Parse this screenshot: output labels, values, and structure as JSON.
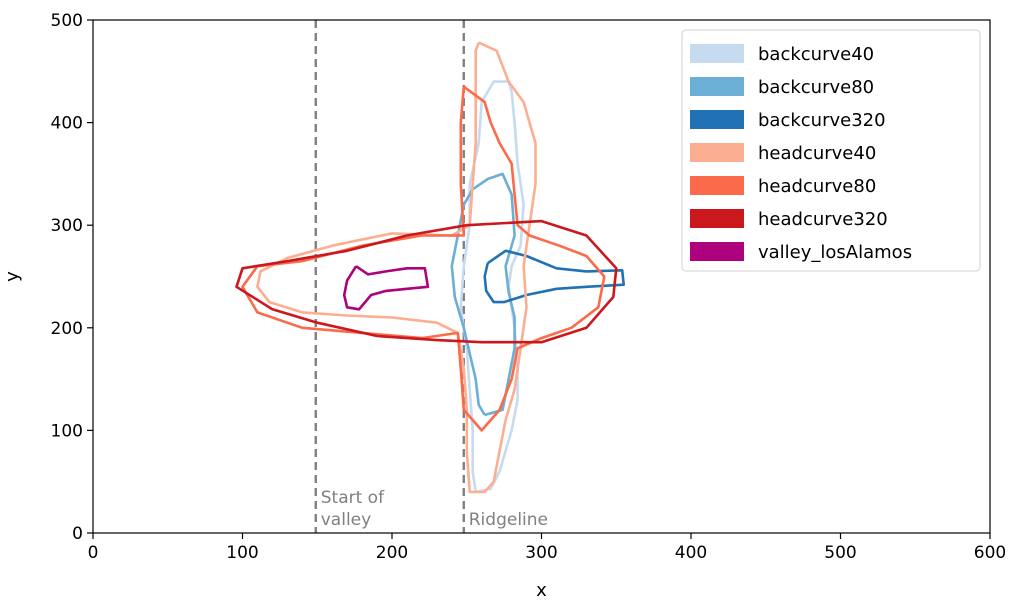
{
  "chart_data": {
    "type": "line",
    "xlabel": "x",
    "ylabel": "y",
    "xlim": [
      0,
      600
    ],
    "ylim": [
      0,
      500
    ],
    "xticks": [
      0,
      100,
      200,
      300,
      400,
      500,
      600
    ],
    "yticks": [
      0,
      100,
      200,
      300,
      400,
      500
    ],
    "grid": false,
    "legend_position": "top-right",
    "vlines": [
      {
        "x": 149,
        "label": "Start of\nvalley",
        "color": "#808080"
      },
      {
        "x": 248,
        "label": "Ridgeline",
        "color": "#808080"
      }
    ],
    "series": [
      {
        "name": "backcurve40",
        "color": "#c6dbef",
        "points": [
          [
            256,
            40
          ],
          [
            266,
            43
          ],
          [
            272,
            60
          ],
          [
            276,
            80
          ],
          [
            280,
            100
          ],
          [
            284,
            130
          ],
          [
            284,
            160
          ],
          [
            282,
            200
          ],
          [
            278,
            240
          ],
          [
            280,
            260
          ],
          [
            286,
            280
          ],
          [
            288,
            320
          ],
          [
            284,
            360
          ],
          [
            282,
            400
          ],
          [
            280,
            430
          ],
          [
            278,
            440
          ],
          [
            268,
            440
          ],
          [
            260,
            420
          ],
          [
            258,
            380
          ],
          [
            252,
            340
          ],
          [
            252,
            300
          ],
          [
            248,
            260
          ],
          [
            246,
            220
          ],
          [
            250,
            180
          ],
          [
            252,
            140
          ],
          [
            254,
            100
          ],
          [
            254,
            60
          ],
          [
            256,
            40
          ]
        ]
      },
      {
        "name": "backcurve80",
        "color": "#6baed6",
        "points": [
          [
            262,
            115
          ],
          [
            274,
            120
          ],
          [
            278,
            150
          ],
          [
            282,
            180
          ],
          [
            282,
            210
          ],
          [
            278,
            235
          ],
          [
            276,
            260
          ],
          [
            282,
            290
          ],
          [
            280,
            330
          ],
          [
            274,
            350
          ],
          [
            264,
            345
          ],
          [
            254,
            335
          ],
          [
            248,
            320
          ],
          [
            244,
            290
          ],
          [
            240,
            260
          ],
          [
            242,
            230
          ],
          [
            248,
            200
          ],
          [
            252,
            175
          ],
          [
            256,
            150
          ],
          [
            258,
            125
          ],
          [
            262,
            115
          ]
        ]
      },
      {
        "name": "backcurve320",
        "color": "#2171b5",
        "points": [
          [
            264,
            263
          ],
          [
            276,
            275
          ],
          [
            290,
            270
          ],
          [
            310,
            258
          ],
          [
            330,
            255
          ],
          [
            354,
            256
          ],
          [
            355,
            242
          ],
          [
            330,
            240
          ],
          [
            310,
            238
          ],
          [
            290,
            232
          ],
          [
            275,
            225
          ],
          [
            268,
            225
          ],
          [
            263,
            236
          ],
          [
            262,
            250
          ],
          [
            264,
            263
          ]
        ]
      },
      {
        "name": "headcurve40",
        "color": "#fcae91",
        "points": [
          [
            258,
            478
          ],
          [
            270,
            470
          ],
          [
            278,
            440
          ],
          [
            288,
            420
          ],
          [
            296,
            380
          ],
          [
            296,
            340
          ],
          [
            292,
            300
          ],
          [
            288,
            260
          ],
          [
            290,
            220
          ],
          [
            286,
            180
          ],
          [
            282,
            140
          ],
          [
            276,
            110
          ],
          [
            272,
            80
          ],
          [
            268,
            50
          ],
          [
            262,
            40
          ],
          [
            252,
            40
          ],
          [
            250,
            80
          ],
          [
            250,
            120
          ],
          [
            248,
            160
          ],
          [
            244,
            195
          ],
          [
            230,
            205
          ],
          [
            200,
            210
          ],
          [
            170,
            212
          ],
          [
            140,
            215
          ],
          [
            118,
            225
          ],
          [
            110,
            240
          ],
          [
            112,
            255
          ],
          [
            130,
            268
          ],
          [
            160,
            280
          ],
          [
            200,
            292
          ],
          [
            240,
            290
          ],
          [
            252,
            300
          ],
          [
            254,
            340
          ],
          [
            256,
            380
          ],
          [
            256,
            420
          ],
          [
            256,
            470
          ],
          [
            258,
            478
          ]
        ]
      },
      {
        "name": "headcurve80",
        "color": "#fb6a4a",
        "points": [
          [
            248,
            435
          ],
          [
            262,
            420
          ],
          [
            266,
            400
          ],
          [
            272,
            380
          ],
          [
            280,
            360
          ],
          [
            284,
            300
          ],
          [
            292,
            290
          ],
          [
            312,
            280
          ],
          [
            330,
            270
          ],
          [
            342,
            250
          ],
          [
            338,
            220
          ],
          [
            320,
            200
          ],
          [
            300,
            190
          ],
          [
            284,
            180
          ],
          [
            280,
            150
          ],
          [
            272,
            120
          ],
          [
            260,
            100
          ],
          [
            248,
            120
          ],
          [
            246,
            160
          ],
          [
            244,
            195
          ],
          [
            220,
            190
          ],
          [
            180,
            195
          ],
          [
            140,
            200
          ],
          [
            110,
            215
          ],
          [
            100,
            240
          ],
          [
            110,
            260
          ],
          [
            140,
            265
          ],
          [
            180,
            280
          ],
          [
            220,
            290
          ],
          [
            248,
            290
          ],
          [
            246,
            340
          ],
          [
            246,
            400
          ],
          [
            248,
            435
          ]
        ]
      },
      {
        "name": "headcurve320",
        "color": "#cb181d",
        "points": [
          [
            250,
            300
          ],
          [
            300,
            304
          ],
          [
            330,
            290
          ],
          [
            350,
            258
          ],
          [
            348,
            230
          ],
          [
            330,
            200
          ],
          [
            300,
            186
          ],
          [
            260,
            186
          ],
          [
            230,
            188
          ],
          [
            190,
            192
          ],
          [
            150,
            205
          ],
          [
            120,
            218
          ],
          [
            96,
            240
          ],
          [
            100,
            258
          ],
          [
            130,
            265
          ],
          [
            170,
            275
          ],
          [
            210,
            290
          ],
          [
            250,
            300
          ]
        ]
      },
      {
        "name": "valley_losAlamos",
        "color": "#ae017e",
        "points": [
          [
            176,
            260
          ],
          [
            184,
            252
          ],
          [
            196,
            255
          ],
          [
            210,
            258
          ],
          [
            222,
            258
          ],
          [
            224,
            240
          ],
          [
            210,
            238
          ],
          [
            196,
            236
          ],
          [
            186,
            232
          ],
          [
            178,
            218
          ],
          [
            170,
            220
          ],
          [
            168,
            232
          ],
          [
            170,
            246
          ],
          [
            176,
            260
          ]
        ]
      }
    ]
  }
}
